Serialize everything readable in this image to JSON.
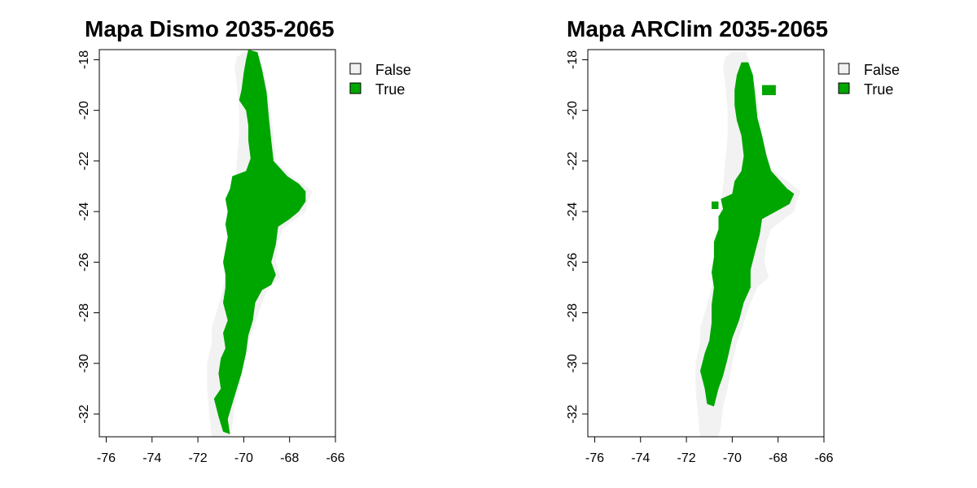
{
  "chart_data": [
    {
      "type": "raster-map",
      "title": "Mapa Dismo 2035-2065",
      "xlim": [
        -76.3,
        -66.0
      ],
      "ylim": [
        -32.9,
        -17.6
      ],
      "x_ticks": [
        -76,
        -74,
        -72,
        -70,
        -68,
        -66
      ],
      "y_ticks": [
        -18,
        -20,
        -22,
        -24,
        -26,
        -28,
        -30,
        -32
      ],
      "x_tick_labels": [
        "-76",
        "-74",
        "-72",
        "-70",
        "-68",
        "-66"
      ],
      "y_tick_labels": [
        "-18",
        "-20",
        "-22",
        "-24",
        "-26",
        "-28",
        "-30",
        "-32"
      ],
      "legend": [
        {
          "label": "False",
          "color": "#f2f2f2"
        },
        {
          "label": "True",
          "color": "#00a600"
        }
      ],
      "legend_position": "top-right-outside",
      "false_region": [
        [
          -70.0,
          -17.7
        ],
        [
          -69.4,
          -17.7
        ],
        [
          -69.1,
          -18.5
        ],
        [
          -68.9,
          -19.5
        ],
        [
          -68.7,
          -21.0
        ],
        [
          -68.6,
          -22.0
        ],
        [
          -67.9,
          -22.6
        ],
        [
          -67.3,
          -23.0
        ],
        [
          -67.0,
          -23.2
        ],
        [
          -67.2,
          -23.6
        ],
        [
          -67.3,
          -24.0
        ],
        [
          -67.9,
          -24.4
        ],
        [
          -68.3,
          -24.7
        ],
        [
          -68.5,
          -25.2
        ],
        [
          -68.6,
          -26.0
        ],
        [
          -68.4,
          -26.6
        ],
        [
          -68.9,
          -27.0
        ],
        [
          -69.2,
          -27.6
        ],
        [
          -69.5,
          -28.4
        ],
        [
          -69.8,
          -29.2
        ],
        [
          -70.0,
          -30.0
        ],
        [
          -70.2,
          -31.0
        ],
        [
          -70.4,
          -31.7
        ],
        [
          -70.5,
          -32.5
        ],
        [
          -70.6,
          -32.9
        ],
        [
          -71.4,
          -32.9
        ],
        [
          -71.5,
          -32.0
        ],
        [
          -71.6,
          -31.0
        ],
        [
          -71.6,
          -30.0
        ],
        [
          -71.4,
          -29.2
        ],
        [
          -71.4,
          -28.6
        ],
        [
          -71.2,
          -28.0
        ],
        [
          -71.0,
          -27.4
        ],
        [
          -70.8,
          -26.6
        ],
        [
          -70.7,
          -25.6
        ],
        [
          -70.6,
          -24.6
        ],
        [
          -70.5,
          -23.8
        ],
        [
          -70.4,
          -23.0
        ],
        [
          -70.3,
          -22.0
        ],
        [
          -70.2,
          -21.0
        ],
        [
          -70.2,
          -20.0
        ],
        [
          -70.3,
          -19.0
        ],
        [
          -70.4,
          -18.3
        ],
        [
          -70.3,
          -17.9
        ]
      ],
      "true_regions": [
        [
          [
            -69.8,
            -17.6
          ],
          [
            -69.4,
            -17.7
          ],
          [
            -69.2,
            -18.4
          ],
          [
            -69.0,
            -19.3
          ],
          [
            -68.9,
            -20.3
          ],
          [
            -68.8,
            -21.2
          ],
          [
            -68.7,
            -22.0
          ],
          [
            -68.1,
            -22.6
          ],
          [
            -67.6,
            -22.9
          ],
          [
            -67.3,
            -23.2
          ],
          [
            -67.3,
            -23.6
          ],
          [
            -67.6,
            -24.0
          ],
          [
            -68.0,
            -24.3
          ],
          [
            -68.5,
            -24.6
          ],
          [
            -68.6,
            -25.3
          ],
          [
            -68.8,
            -26.0
          ],
          [
            -68.6,
            -26.5
          ],
          [
            -68.8,
            -26.9
          ],
          [
            -69.2,
            -27.1
          ],
          [
            -69.5,
            -27.6
          ],
          [
            -69.6,
            -28.3
          ],
          [
            -69.8,
            -28.9
          ],
          [
            -69.9,
            -29.6
          ],
          [
            -70.1,
            -30.4
          ],
          [
            -70.3,
            -31.0
          ],
          [
            -70.5,
            -31.6
          ],
          [
            -70.7,
            -32.2
          ],
          [
            -70.6,
            -32.8
          ],
          [
            -70.9,
            -32.7
          ],
          [
            -71.1,
            -32.1
          ],
          [
            -71.3,
            -31.4
          ],
          [
            -71.0,
            -31.0
          ],
          [
            -71.1,
            -30.4
          ],
          [
            -71.0,
            -29.8
          ],
          [
            -70.8,
            -29.4
          ],
          [
            -70.9,
            -28.8
          ],
          [
            -70.7,
            -28.3
          ],
          [
            -70.9,
            -27.6
          ],
          [
            -70.8,
            -27.0
          ],
          [
            -70.8,
            -26.5
          ],
          [
            -70.9,
            -26.0
          ],
          [
            -70.8,
            -25.5
          ],
          [
            -70.7,
            -25.0
          ],
          [
            -70.8,
            -24.5
          ],
          [
            -70.7,
            -24.0
          ],
          [
            -70.8,
            -23.5
          ],
          [
            -70.6,
            -23.1
          ],
          [
            -70.5,
            -22.6
          ],
          [
            -69.9,
            -22.4
          ],
          [
            -69.7,
            -21.9
          ],
          [
            -69.8,
            -21.2
          ],
          [
            -69.8,
            -20.6
          ],
          [
            -69.9,
            -20.0
          ],
          [
            -70.2,
            -19.6
          ],
          [
            -70.1,
            -19.2
          ],
          [
            -70.0,
            -18.5
          ],
          [
            -69.9,
            -18.0
          ]
        ]
      ]
    },
    {
      "type": "raster-map",
      "title": "Mapa ARClim 2035-2065",
      "xlim": [
        -76.3,
        -66.0
      ],
      "ylim": [
        -32.9,
        -17.6
      ],
      "x_ticks": [
        -76,
        -74,
        -72,
        -70,
        -68,
        -66
      ],
      "y_ticks": [
        -18,
        -20,
        -22,
        -24,
        -26,
        -28,
        -30,
        -32
      ],
      "x_tick_labels": [
        "-76",
        "-74",
        "-72",
        "-70",
        "-68",
        "-66"
      ],
      "y_tick_labels": [
        "-18",
        "-20",
        "-22",
        "-24",
        "-26",
        "-28",
        "-30",
        "-32"
      ],
      "legend": [
        {
          "label": "False",
          "color": "#f2f2f2"
        },
        {
          "label": "True",
          "color": "#00a600"
        }
      ],
      "legend_position": "top-right-outside",
      "false_region": [
        [
          -70.0,
          -17.7
        ],
        [
          -69.4,
          -17.7
        ],
        [
          -69.1,
          -18.5
        ],
        [
          -68.9,
          -19.5
        ],
        [
          -68.7,
          -21.0
        ],
        [
          -68.6,
          -22.0
        ],
        [
          -67.9,
          -22.6
        ],
        [
          -67.3,
          -23.0
        ],
        [
          -67.0,
          -23.2
        ],
        [
          -67.2,
          -23.6
        ],
        [
          -67.3,
          -24.0
        ],
        [
          -67.9,
          -24.4
        ],
        [
          -68.3,
          -24.7
        ],
        [
          -68.5,
          -25.2
        ],
        [
          -68.6,
          -26.0
        ],
        [
          -68.4,
          -26.6
        ],
        [
          -68.9,
          -27.0
        ],
        [
          -69.2,
          -27.6
        ],
        [
          -69.5,
          -28.4
        ],
        [
          -69.8,
          -29.2
        ],
        [
          -70.0,
          -30.0
        ],
        [
          -70.2,
          -31.0
        ],
        [
          -70.4,
          -31.7
        ],
        [
          -70.5,
          -32.5
        ],
        [
          -70.6,
          -32.9
        ],
        [
          -71.4,
          -32.9
        ],
        [
          -71.5,
          -32.0
        ],
        [
          -71.6,
          -31.0
        ],
        [
          -71.6,
          -30.0
        ],
        [
          -71.4,
          -29.2
        ],
        [
          -71.4,
          -28.6
        ],
        [
          -71.2,
          -28.0
        ],
        [
          -71.0,
          -27.4
        ],
        [
          -70.8,
          -26.6
        ],
        [
          -70.7,
          -25.6
        ],
        [
          -70.6,
          -24.6
        ],
        [
          -70.5,
          -23.8
        ],
        [
          -70.4,
          -23.0
        ],
        [
          -70.3,
          -22.0
        ],
        [
          -70.2,
          -21.0
        ],
        [
          -70.2,
          -20.0
        ],
        [
          -70.3,
          -19.0
        ],
        [
          -70.4,
          -18.3
        ],
        [
          -70.3,
          -17.9
        ]
      ],
      "true_regions": [
        [
          [
            -69.6,
            -18.1
          ],
          [
            -69.3,
            -18.1
          ],
          [
            -69.1,
            -18.6
          ],
          [
            -69.0,
            -19.4
          ],
          [
            -68.9,
            -20.3
          ],
          [
            -68.7,
            -21.0
          ],
          [
            -68.5,
            -21.8
          ],
          [
            -68.3,
            -22.4
          ],
          [
            -67.9,
            -22.8
          ],
          [
            -67.6,
            -23.1
          ],
          [
            -67.3,
            -23.3
          ],
          [
            -67.5,
            -23.7
          ],
          [
            -68.1,
            -24.0
          ],
          [
            -68.7,
            -24.3
          ],
          [
            -68.8,
            -24.9
          ],
          [
            -69.0,
            -25.6
          ],
          [
            -69.2,
            -26.3
          ],
          [
            -69.2,
            -27.0
          ],
          [
            -69.5,
            -27.6
          ],
          [
            -69.7,
            -28.3
          ],
          [
            -70.0,
            -29.0
          ],
          [
            -70.2,
            -29.8
          ],
          [
            -70.4,
            -30.5
          ],
          [
            -70.6,
            -31.0
          ],
          [
            -70.8,
            -31.7
          ],
          [
            -71.1,
            -31.6
          ],
          [
            -71.2,
            -31.0
          ],
          [
            -71.4,
            -30.3
          ],
          [
            -71.2,
            -29.6
          ],
          [
            -71.0,
            -29.1
          ],
          [
            -70.9,
            -28.4
          ],
          [
            -70.9,
            -27.7
          ],
          [
            -70.8,
            -27.0
          ],
          [
            -70.9,
            -26.4
          ],
          [
            -70.8,
            -25.8
          ],
          [
            -70.8,
            -25.2
          ],
          [
            -70.6,
            -24.7
          ],
          [
            -70.6,
            -24.2
          ],
          [
            -70.4,
            -23.9
          ],
          [
            -70.5,
            -23.5
          ],
          [
            -70.0,
            -23.3
          ],
          [
            -69.9,
            -22.8
          ],
          [
            -69.6,
            -22.4
          ],
          [
            -69.5,
            -21.8
          ],
          [
            -69.6,
            -21.0
          ],
          [
            -69.8,
            -20.4
          ],
          [
            -69.9,
            -19.8
          ],
          [
            -69.9,
            -19.2
          ],
          [
            -69.8,
            -18.6
          ]
        ],
        [
          [
            -68.7,
            -19.0
          ],
          [
            -68.1,
            -19.0
          ],
          [
            -68.1,
            -19.4
          ],
          [
            -68.7,
            -19.4
          ]
        ],
        [
          [
            -70.9,
            -23.6
          ],
          [
            -70.6,
            -23.6
          ],
          [
            -70.6,
            -23.9
          ],
          [
            -70.9,
            -23.9
          ]
        ]
      ]
    }
  ]
}
